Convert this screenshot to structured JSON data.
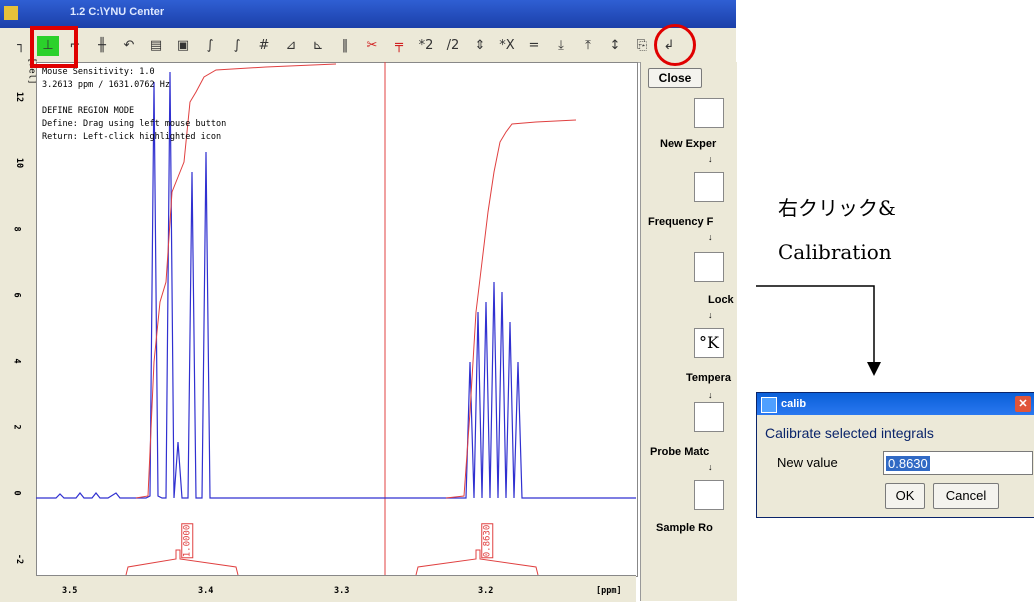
{
  "window": {
    "title": "1.2 C:\\YNU Center"
  },
  "toolbar": {
    "buttons": [
      {
        "name": "region-icon",
        "glyph": "┐"
      },
      {
        "name": "define-region-icon",
        "glyph": "⊥"
      },
      {
        "name": "integral-icon",
        "glyph": "⌐"
      },
      {
        "name": "multi-integral-icon",
        "glyph": "╫"
      },
      {
        "name": "undo-icon",
        "glyph": "↶"
      },
      {
        "name": "read-icon",
        "glyph": "▤"
      },
      {
        "name": "save-icon",
        "glyph": "▣"
      },
      {
        "name": "calibrate-icon",
        "glyph": "∫"
      },
      {
        "name": "scale-icon",
        "glyph": "∫"
      },
      {
        "name": "hash-icon",
        "glyph": "#"
      },
      {
        "name": "slope-icon",
        "glyph": "⊿"
      },
      {
        "name": "bias-icon",
        "glyph": "⊾"
      },
      {
        "name": "pause-icon",
        "glyph": "‖"
      },
      {
        "name": "cut-icon",
        "glyph": "✂"
      },
      {
        "name": "split-icon",
        "glyph": "╤"
      },
      {
        "name": "multiply-icon",
        "glyph": "*2"
      },
      {
        "name": "divide-icon",
        "glyph": "/2"
      },
      {
        "name": "updown-icon",
        "glyph": "⇕"
      },
      {
        "name": "x-icon",
        "glyph": "*X"
      },
      {
        "name": "equal-icon",
        "glyph": "="
      },
      {
        "name": "down-icon",
        "glyph": "⤓"
      },
      {
        "name": "up-icon",
        "glyph": "⤒"
      },
      {
        "name": "updown2-icon",
        "glyph": "↕"
      },
      {
        "name": "save-export-icon",
        "glyph": "⎘"
      },
      {
        "name": "return-icon",
        "glyph": "↲"
      }
    ]
  },
  "plot": {
    "info_lines": [
      "Mouse Sensitivity: 1.0",
      "3.2613 ppm / 1631.0762 Hz",
      "",
      "DEFINE REGION MODE",
      "Define: Drag using left mouse button",
      "Return: Left-click highlighted icon"
    ],
    "y_unit": "[rel]",
    "y_ticks": [
      "12",
      "10",
      "8",
      "6",
      "4",
      "2",
      "0",
      "-2"
    ],
    "x_ticks": [
      "3.5",
      "3.4",
      "3.3",
      "3.2"
    ],
    "x_unit": "[ppm]",
    "integral_labels": [
      "1.0000",
      "0.8630"
    ]
  },
  "sidebar": {
    "close_label": "Close",
    "items": [
      "New Exper",
      "Frequency F",
      "Lock",
      "Tempera",
      "Probe Matc",
      "Sample Ro"
    ]
  },
  "annotation": {
    "line1": "右クリック&",
    "line2": "Calibration"
  },
  "dialog": {
    "title": "calib",
    "heading": "Calibrate selected integrals",
    "field_label": "New value",
    "field_value": "0.8630",
    "ok_label": "OK",
    "cancel_label": "Cancel"
  },
  "colors": {
    "spectrum": "#3030d0",
    "integral": "#e04040",
    "highlight": "#e00000"
  }
}
